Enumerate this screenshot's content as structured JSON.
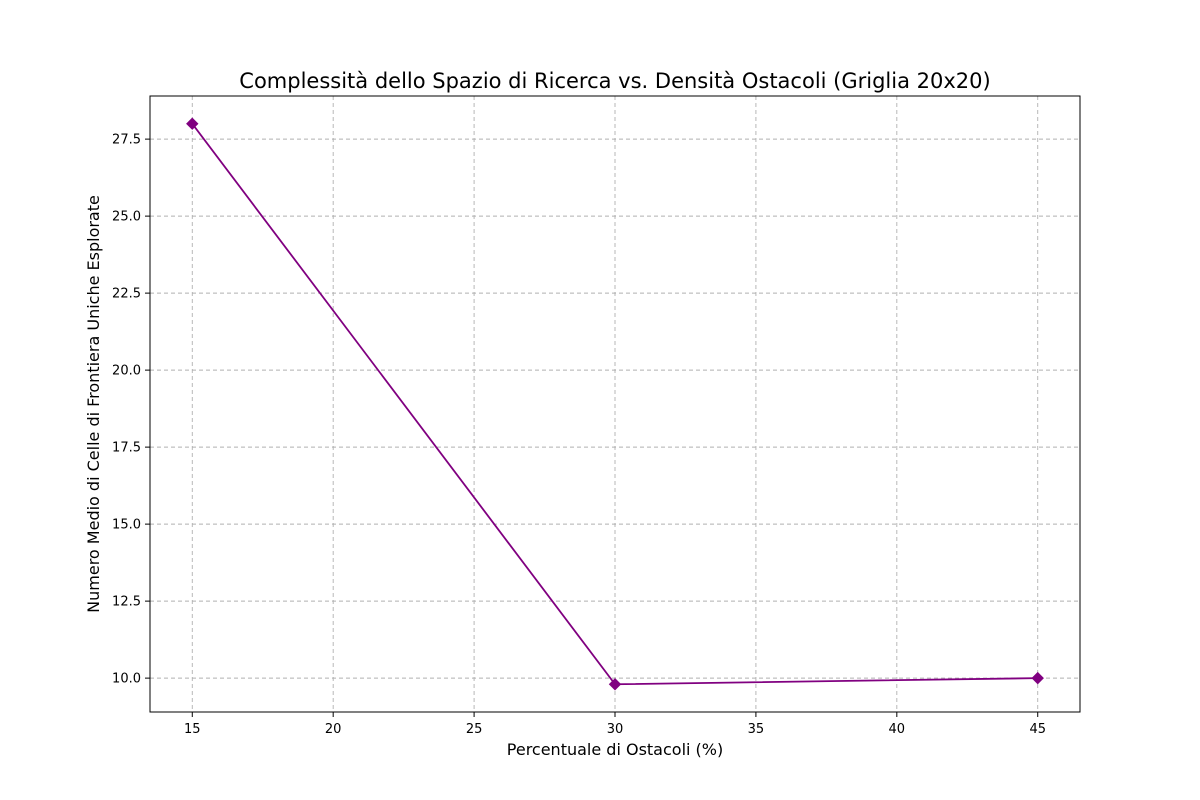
{
  "chart_data": {
    "type": "line",
    "title": "Complessità dello Spazio di Ricerca vs. Densità Ostacoli (Griglia 20x20)",
    "xlabel": "Percentuale di Ostacoli (%)",
    "ylabel": "Numero Medio di Celle di Frontiera Uniche Esplorate",
    "xlim": [
      13.5,
      46.5
    ],
    "ylim": [
      8.9,
      28.9
    ],
    "x_ticks": [
      15,
      20,
      25,
      30,
      35,
      40,
      45
    ],
    "x_tick_labels": [
      "15",
      "20",
      "25",
      "30",
      "35",
      "40",
      "45"
    ],
    "y_ticks": [
      10.0,
      12.5,
      15.0,
      17.5,
      20.0,
      22.5,
      25.0,
      27.5
    ],
    "y_tick_labels": [
      "10.0",
      "12.5",
      "15.0",
      "17.5",
      "20.0",
      "22.5",
      "25.0",
      "27.5"
    ],
    "grid": true,
    "grid_style": "dashed",
    "series": [
      {
        "x": [
          15,
          30,
          45
        ],
        "y": [
          28.0,
          9.8,
          10.0
        ],
        "color": "#800080",
        "marker": "diamond"
      }
    ]
  }
}
